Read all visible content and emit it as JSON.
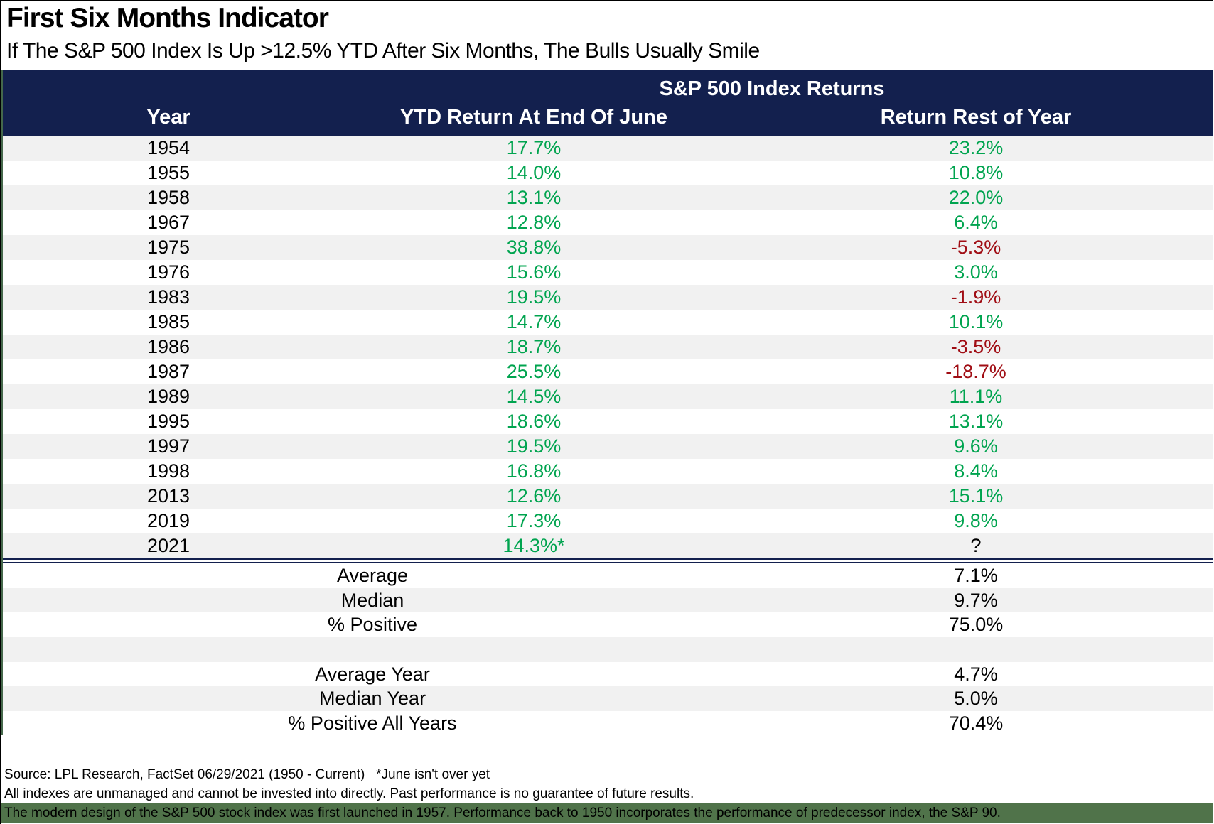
{
  "header": {
    "title": "First Six Months Indicator",
    "subtitle": "If The S&P 500 Index Is Up >12.5% YTD After Six Months, The Bulls Usually Smile"
  },
  "table": {
    "group_header": "S&P 500 Index Returns",
    "columns": [
      "Year",
      "YTD Return At End Of June",
      "Return Rest of Year"
    ],
    "rows": [
      {
        "year": "1954",
        "ytd": "17.7%",
        "rest": "23.2%",
        "rest_color": "green"
      },
      {
        "year": "1955",
        "ytd": "14.0%",
        "rest": "10.8%",
        "rest_color": "green"
      },
      {
        "year": "1958",
        "ytd": "13.1%",
        "rest": "22.0%",
        "rest_color": "green"
      },
      {
        "year": "1967",
        "ytd": "12.8%",
        "rest": "6.4%",
        "rest_color": "green"
      },
      {
        "year": "1975",
        "ytd": "38.8%",
        "rest": "-5.3%",
        "rest_color": "red"
      },
      {
        "year": "1976",
        "ytd": "15.6%",
        "rest": "3.0%",
        "rest_color": "green"
      },
      {
        "year": "1983",
        "ytd": "19.5%",
        "rest": "-1.9%",
        "rest_color": "red"
      },
      {
        "year": "1985",
        "ytd": "14.7%",
        "rest": "10.1%",
        "rest_color": "green"
      },
      {
        "year": "1986",
        "ytd": "18.7%",
        "rest": "-3.5%",
        "rest_color": "red"
      },
      {
        "year": "1987",
        "ytd": "25.5%",
        "rest": "-18.7%",
        "rest_color": "red"
      },
      {
        "year": "1989",
        "ytd": "14.5%",
        "rest": "11.1%",
        "rest_color": "green"
      },
      {
        "year": "1995",
        "ytd": "18.6%",
        "rest": "13.1%",
        "rest_color": "green"
      },
      {
        "year": "1997",
        "ytd": "19.5%",
        "rest": "9.6%",
        "rest_color": "green"
      },
      {
        "year": "1998",
        "ytd": "16.8%",
        "rest": "8.4%",
        "rest_color": "green"
      },
      {
        "year": "2013",
        "ytd": "12.6%",
        "rest": "15.1%",
        "rest_color": "green"
      },
      {
        "year": "2019",
        "ytd": "17.3%",
        "rest": "9.8%",
        "rest_color": "green"
      },
      {
        "year": "2021",
        "ytd": "14.3%*",
        "rest": "?",
        "rest_color": "neutral"
      }
    ],
    "summary_top": [
      {
        "label": "Average",
        "value": "7.1%"
      },
      {
        "label": "Median",
        "value": "9.7%"
      },
      {
        "label": "% Positive",
        "value": "75.0%"
      }
    ],
    "summary_bottom": [
      {
        "label": "Average Year",
        "value": "4.7%"
      },
      {
        "label": "Median Year",
        "value": "5.0%"
      },
      {
        "label": "% Positive All Years",
        "value": "70.4%"
      }
    ]
  },
  "footnotes": {
    "source_line": "Source: LPL Research, FactSet 06/29/2021 (1950 - Current)   *June isn't over yet",
    "disclaimer_line": "All indexes are unmanaged and cannot be invested into directly. Past performance is no guarantee of future results.",
    "highlight_line": "The modern design of the S&P 500 stock index was first launched in 1957. Performance back to 1950 incorporates the performance of predecessor index, the S&P 90."
  },
  "colors": {
    "navy": "#13204E",
    "green": "#00A44F",
    "red": "#A00D14",
    "shade": "#F1F1F1",
    "band": "#50734A",
    "strip": "#45684B"
  },
  "chart_data": {
    "type": "table",
    "title": "First Six Months Indicator",
    "subtitle": "If The S&P 500 Index Is Up >12.5% YTD After Six Months, The Bulls Usually Smile",
    "group_header": "S&P 500 Index Returns",
    "columns": [
      "Year",
      "YTD Return At End Of June (%)",
      "Return Rest of Year (%)"
    ],
    "rows": [
      [
        1954,
        17.7,
        23.2
      ],
      [
        1955,
        14.0,
        10.8
      ],
      [
        1958,
        13.1,
        22.0
      ],
      [
        1967,
        12.8,
        6.4
      ],
      [
        1975,
        38.8,
        -5.3
      ],
      [
        1976,
        15.6,
        3.0
      ],
      [
        1983,
        19.5,
        -1.9
      ],
      [
        1985,
        14.7,
        10.1
      ],
      [
        1986,
        18.7,
        -3.5
      ],
      [
        1987,
        25.5,
        -18.7
      ],
      [
        1989,
        14.5,
        11.1
      ],
      [
        1995,
        18.6,
        13.1
      ],
      [
        1997,
        19.5,
        9.6
      ],
      [
        1998,
        16.8,
        8.4
      ],
      [
        2013,
        12.6,
        15.1
      ],
      [
        2019,
        17.3,
        9.8
      ],
      [
        2021,
        "14.3*",
        "?"
      ]
    ],
    "summary": {
      "Average": 7.1,
      "Median": 9.7,
      "% Positive": 75.0,
      "Average Year": 4.7,
      "Median Year": 5.0,
      "% Positive All Years": 70.4
    }
  }
}
